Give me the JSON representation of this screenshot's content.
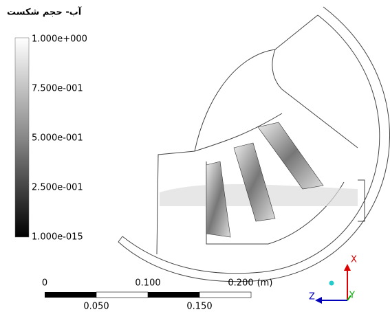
{
  "legend": {
    "title": "آب- حجم شکست",
    "labels": [
      "1.000e+000",
      "7.500e-001",
      "5.000e-001",
      "2.500e-001",
      "1.000e-015"
    ]
  },
  "scale_bar": {
    "top_labels": [
      "0",
      "0.100",
      "0.200"
    ],
    "unit": "(m)",
    "bottom_labels": [
      "0.050",
      "0.150"
    ]
  },
  "triad": {
    "x": "X",
    "z": "Z",
    "y": "Y"
  }
}
